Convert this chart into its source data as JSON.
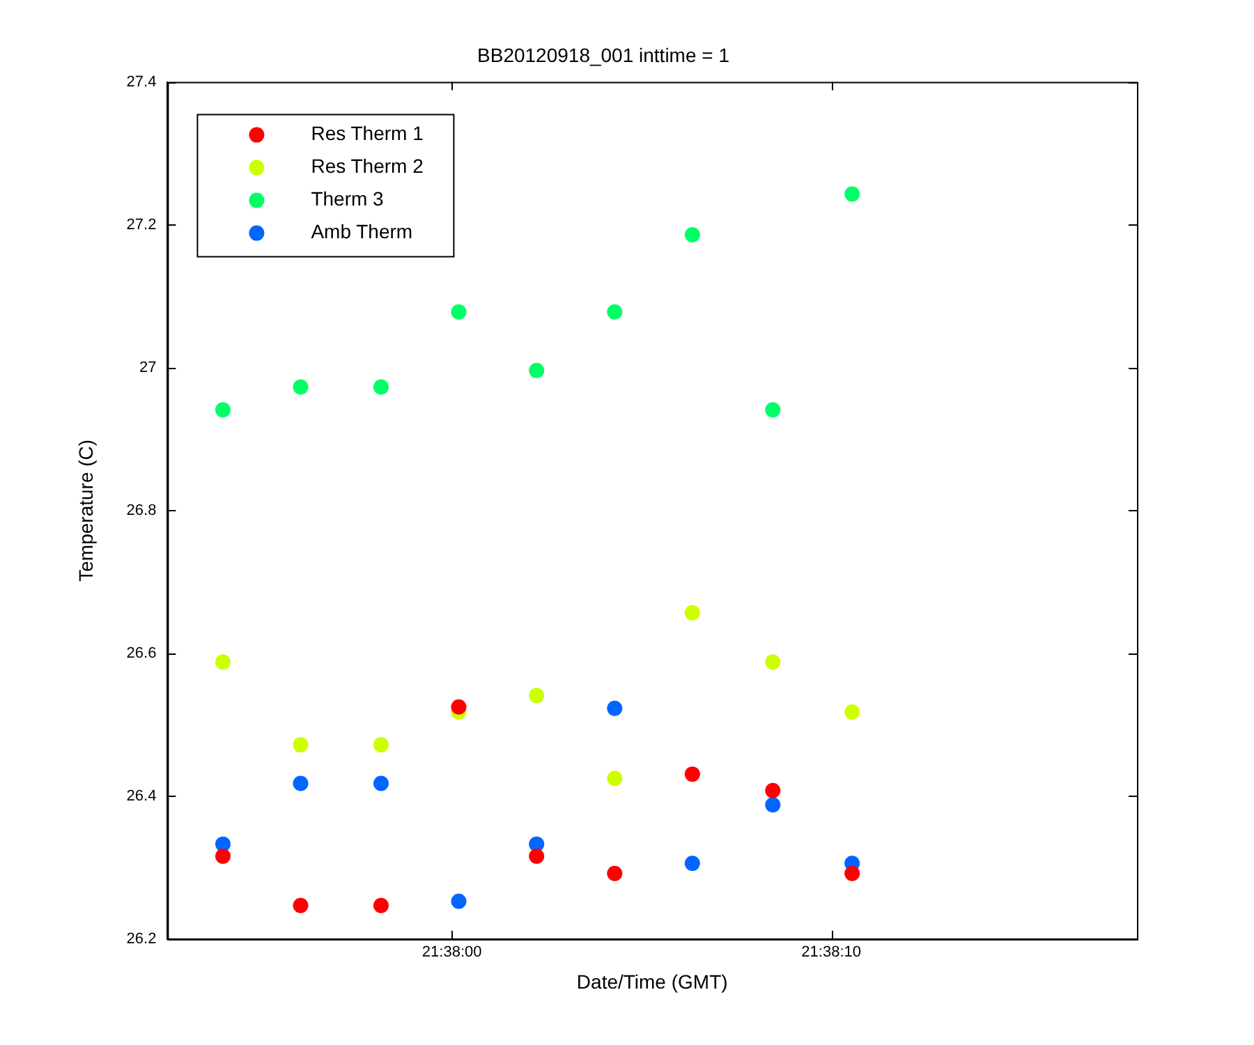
{
  "chart_data": {
    "type": "scatter",
    "title": "BB20120918_001 inttime = 1",
    "xlabel": "Date/Time (GMT)",
    "ylabel": "Temperature (C)",
    "x": [
      21.631656,
      21.632225,
      21.632814,
      21.633383,
      21.633953,
      21.634525,
      21.635094,
      21.635683,
      21.636264
    ],
    "xlim": [
      21.63125,
      21.63835
    ],
    "xticks": [
      {
        "value": 21.633333,
        "label": "21:38:00"
      },
      {
        "value": 21.636111,
        "label": "21:38:10"
      }
    ],
    "ylim": [
      26.2,
      27.4
    ],
    "yticks": [
      26.2,
      26.4,
      26.6,
      26.8,
      27,
      27.2,
      27.4
    ],
    "grid": false,
    "legend": "top left",
    "marker": "circle",
    "series": [
      {
        "name": "Res Therm 1",
        "color": "#ff0000",
        "values": [
          26.316,
          26.247,
          26.247,
          26.525,
          26.316,
          26.292,
          26.431,
          26.408,
          26.292
        ]
      },
      {
        "name": "Res Therm 2",
        "color": "#ccff00",
        "values": [
          26.588,
          26.472,
          26.472,
          26.518,
          26.541,
          26.425,
          26.657,
          26.588,
          26.518
        ]
      },
      {
        "name": "Therm 3",
        "color": "#00ff66",
        "values": [
          26.941,
          26.973,
          26.973,
          27.078,
          26.996,
          27.078,
          27.186,
          26.941,
          27.243
        ]
      },
      {
        "name": "Amb Therm",
        "color": "#0066ff",
        "values": [
          26.333,
          26.418,
          26.418,
          26.253,
          26.333,
          26.523,
          26.306,
          26.388,
          26.306
        ]
      }
    ]
  }
}
